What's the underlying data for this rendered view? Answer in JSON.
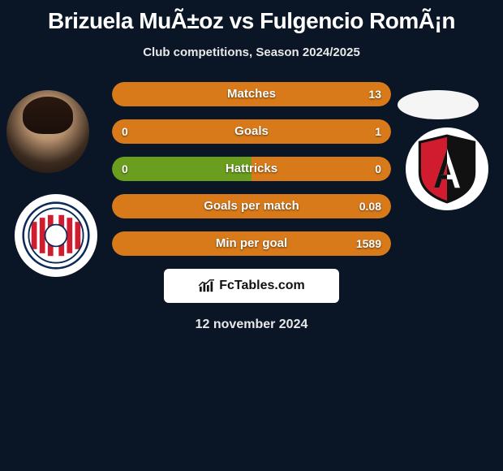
{
  "title": "Brizuela MuÃ±oz vs Fulgencio RomÃ¡n",
  "subtitle": "Club competitions, Season 2024/2025",
  "date": "12 november 2024",
  "brand": "FcTables.com",
  "colors": {
    "background": "#0a1525",
    "green": "#6b9e1f",
    "orange": "#d87a1a",
    "text": "#ffffff"
  },
  "bars": [
    {
      "label": "Matches",
      "left": "",
      "right": "13",
      "left_pct": 0,
      "right_pct": 100,
      "left_color": "#6b9e1f",
      "right_color": "#d87a1a"
    },
    {
      "label": "Goals",
      "left": "0",
      "right": "1",
      "left_pct": 0,
      "right_pct": 100,
      "left_color": "#6b9e1f",
      "right_color": "#d87a1a"
    },
    {
      "label": "Hattricks",
      "left": "0",
      "right": "0",
      "left_pct": 50,
      "right_pct": 50,
      "left_color": "#6b9e1f",
      "right_color": "#d87a1a"
    },
    {
      "label": "Goals per match",
      "left": "",
      "right": "0.08",
      "left_pct": 0,
      "right_pct": 100,
      "left_color": "#6b9e1f",
      "right_color": "#d87a1a"
    },
    {
      "label": "Min per goal",
      "left": "",
      "right": "1589",
      "left_pct": 0,
      "right_pct": 100,
      "left_color": "#6b9e1f",
      "right_color": "#d87a1a"
    }
  ],
  "left_team_logo": {
    "name": "guadalajara-logo",
    "outer_stroke": "#0a2a5a",
    "inner_stripes": [
      "#d01c2e",
      "#ffffff"
    ],
    "center": "#fff"
  },
  "right_team_logo": {
    "name": "atlas-logo",
    "shield_left": "#d01c2e",
    "shield_right": "#111111",
    "letter": "A",
    "letter_color": "#111111"
  }
}
